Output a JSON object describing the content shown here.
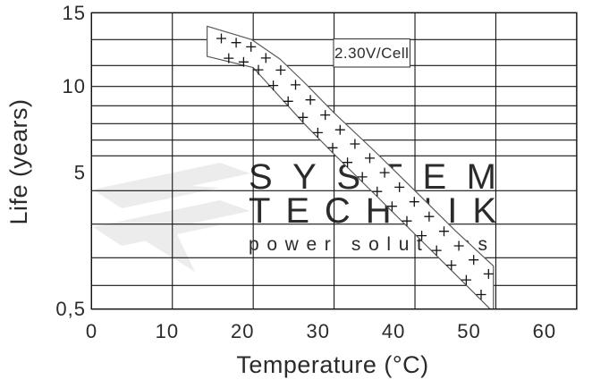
{
  "colors": {
    "background": "#ffffff",
    "grid": "#141414",
    "band_edge": "#595959",
    "marker": "#141414",
    "text": "#2b2b2b",
    "watermark": "#ececec",
    "annotation_border": "#3c3c3c"
  },
  "watermark": {
    "line1": "SYSTEM",
    "line2": "TECHNIK",
    "line3": "power solutions"
  },
  "axes": {
    "x": {
      "title": "Temperature (°C)",
      "tick_labels": [
        "0",
        "10",
        "20",
        "30",
        "40",
        "50",
        "60"
      ]
    },
    "y": {
      "title": "Life (years)",
      "tick_labels": [
        "15",
        "10",
        "5",
        "0,5"
      ],
      "tick_values": [
        15,
        10,
        5,
        0.5
      ]
    }
  },
  "chart_data": {
    "type": "area",
    "title": "",
    "xlabel": "Temperature (°C)",
    "ylabel": "Life (years)",
    "xlim": [
      0,
      60
    ],
    "ylim": [
      0.5,
      15
    ],
    "y_scale": "nonlinear log-like; labeled ticks 15, 10, 5, 0.5",
    "grid": true,
    "x_gridlines": [
      0,
      10,
      20,
      30,
      40,
      50,
      60
    ],
    "y_gridlines": [
      15,
      13,
      11,
      10,
      9,
      8,
      7,
      6,
      4,
      3,
      2,
      1,
      0.5
    ],
    "annotation": "2.30V/Cell",
    "band_fill_symbol": "+",
    "series": [
      {
        "name": "upper limit",
        "points": [
          [
            14.3,
            14.0
          ],
          [
            19.8,
            13.0
          ],
          [
            23.3,
            11.5
          ],
          [
            26.3,
            10.2
          ],
          [
            30,
            8.6
          ],
          [
            35,
            6.3
          ],
          [
            40,
            4.0
          ],
          [
            45,
            2.8
          ],
          [
            49.7,
            1.7
          ]
        ]
      },
      {
        "name": "lower limit",
        "points": [
          [
            14.3,
            11.7
          ],
          [
            20,
            10.9
          ],
          [
            26.3,
            8.0
          ],
          [
            30,
            6.1
          ],
          [
            35,
            3.9
          ],
          [
            40,
            2.7
          ],
          [
            45,
            1.4
          ],
          [
            49.3,
            0.5
          ]
        ]
      }
    ]
  }
}
